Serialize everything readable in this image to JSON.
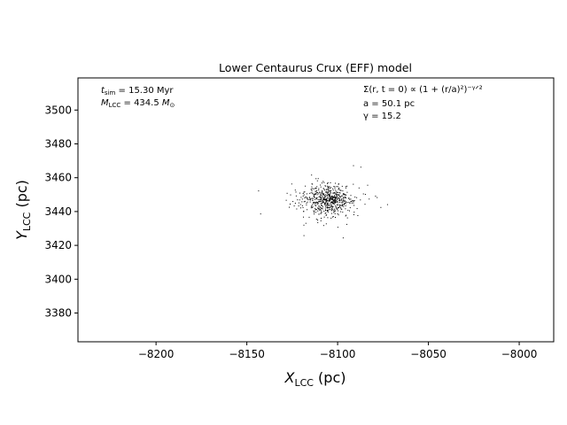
{
  "chart_data": {
    "type": "scatter",
    "title": "Lower Centaurus Crux (EFF) model",
    "xlabel": "X",
    "xlabel_sub": "LCC",
    "xlabel_unit": " (pc)",
    "ylabel": "Y",
    "ylabel_sub": "LCC",
    "ylabel_unit": " (pc)",
    "xlim": [
      -8243,
      -7981
    ],
    "ylim": [
      3363,
      3519
    ],
    "xticks": [
      -8200,
      -8150,
      -8100,
      -8050,
      -8000
    ],
    "xtick_labels": [
      "−8200",
      "−8150",
      "−8100",
      "−8050",
      "−8000"
    ],
    "yticks": [
      3380,
      3400,
      3420,
      3440,
      3460,
      3480,
      3500
    ],
    "ytick_labels": [
      "3380",
      "3400",
      "3420",
      "3440",
      "3460",
      "3480",
      "3500"
    ],
    "marker_color": "#000000",
    "grid": false,
    "legend": "none",
    "annotations_left": {
      "t_sim": {
        "sym": "t",
        "sub": "sim",
        "text": " = 15.30 Myr"
      },
      "m_lcc": {
        "sym": "M",
        "sub": "LCC",
        "text": " = 434.5 ",
        "unit_sym": "M",
        "unit_sub": "⊙"
      }
    },
    "annotations_right": {
      "profile": "Σ(r, t = 0) ∝ (1 + (r/a)²)⁻ᵞᐟ²",
      "a_value": "a = 50.1 pc",
      "gamma_value": "γ = 15.2"
    },
    "generator": {
      "n_points": 620,
      "center": [
        -8105,
        3447
      ],
      "core_radius_pc": [
        27,
        17
      ],
      "eff_gamma": 15.2,
      "cutoff_pc": [
        135,
        78
      ],
      "seed": 151
    }
  }
}
